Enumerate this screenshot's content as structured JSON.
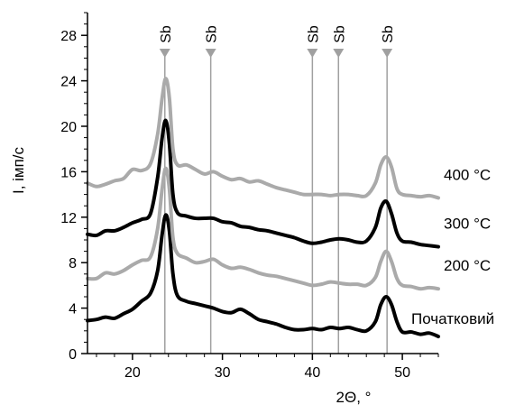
{
  "chart_data": {
    "type": "line",
    "title": "",
    "xlabel": "2Θ, °",
    "ylabel": "I, імп/с",
    "xlim": [
      15,
      54
    ],
    "ylim": [
      0,
      30
    ],
    "x_ticks": [
      20,
      30,
      40,
      50
    ],
    "y_ticks": [
      0,
      4,
      8,
      12,
      16,
      20,
      24,
      28
    ],
    "grid": false,
    "legend": "none",
    "reference_lines": {
      "label": "Sb",
      "color": "#a0a0a0",
      "x": [
        23.6,
        28.7,
        40.0,
        42.9,
        48.3
      ]
    },
    "series": [
      {
        "name": "Початковий",
        "color": "#000000",
        "x": [
          15,
          16,
          17,
          18,
          19,
          20,
          21,
          22,
          22.8,
          23.3,
          23.7,
          24.1,
          24.5,
          25,
          26,
          27,
          28,
          29,
          30,
          31,
          32,
          33,
          34,
          35,
          36,
          37,
          38,
          39,
          40,
          41,
          42,
          43,
          44,
          45,
          46,
          47,
          47.6,
          48.2,
          48.8,
          49.4,
          50,
          51,
          52,
          53,
          54
        ],
        "y": [
          2.9,
          3.0,
          3.2,
          3.1,
          3.5,
          3.9,
          4.6,
          5.3,
          7.3,
          10.5,
          12.2,
          10.8,
          7.0,
          5.1,
          4.6,
          4.4,
          4.2,
          4.0,
          3.7,
          3.6,
          3.9,
          3.5,
          3.0,
          2.8,
          2.6,
          2.3,
          2.1,
          2.1,
          2.2,
          2.1,
          2.3,
          2.2,
          2.3,
          2.1,
          2.0,
          2.8,
          4.3,
          5.0,
          4.3,
          2.8,
          1.9,
          1.9,
          1.7,
          1.8,
          1.5
        ]
      },
      {
        "name": "200 °C",
        "color": "#aaaaaa",
        "x": [
          15,
          16,
          17,
          18,
          19,
          20,
          21,
          22,
          22.8,
          23.3,
          23.7,
          24.1,
          24.5,
          25,
          26,
          27,
          28,
          29,
          30,
          31,
          32,
          33,
          34,
          35,
          36,
          37,
          38,
          39,
          40,
          41,
          42,
          43,
          44,
          45,
          46,
          47,
          47.6,
          48.2,
          48.8,
          49.4,
          50,
          51,
          52,
          53,
          54
        ],
        "y": [
          6.6,
          6.6,
          7.1,
          7.0,
          7.3,
          7.8,
          8.2,
          8.5,
          11.0,
          14.5,
          16.3,
          14.5,
          10.2,
          8.8,
          8.4,
          8.0,
          8.1,
          8.3,
          7.8,
          7.5,
          7.6,
          7.4,
          7.1,
          6.9,
          6.8,
          6.6,
          6.4,
          6.2,
          6.0,
          6.1,
          6.3,
          6.2,
          6.1,
          6.1,
          6.0,
          6.7,
          8.1,
          9.0,
          8.1,
          6.6,
          6.0,
          5.9,
          5.7,
          5.8,
          5.7
        ]
      },
      {
        "name": "300 °C",
        "color": "#000000",
        "x": [
          15,
          16,
          17,
          18,
          19,
          20,
          21,
          22,
          22.8,
          23.3,
          23.7,
          24.1,
          24.5,
          25,
          26,
          27,
          28,
          29,
          30,
          31,
          32,
          33,
          34,
          35,
          36,
          37,
          38,
          39,
          40,
          41,
          42,
          43,
          44,
          45,
          46,
          47,
          47.6,
          48.2,
          48.8,
          49.4,
          50,
          51,
          52,
          53,
          54
        ],
        "y": [
          10.5,
          10.4,
          10.8,
          10.8,
          11.1,
          11.5,
          11.8,
          12.3,
          15.5,
          19.0,
          20.5,
          18.5,
          14.0,
          12.4,
          12.1,
          11.9,
          11.9,
          11.9,
          11.6,
          11.5,
          11.2,
          11.1,
          10.9,
          10.8,
          10.6,
          10.4,
          10.2,
          9.9,
          9.7,
          9.8,
          10.0,
          10.1,
          10.0,
          9.8,
          9.9,
          11.1,
          12.8,
          13.4,
          12.3,
          10.6,
          9.9,
          9.8,
          9.6,
          9.5,
          9.4
        ]
      },
      {
        "name": "400 °C",
        "color": "#aaaaaa",
        "x": [
          15,
          16,
          17,
          18,
          19,
          20,
          21,
          22,
          22.8,
          23.3,
          23.7,
          24.1,
          24.5,
          25,
          26,
          27,
          28,
          29,
          30,
          31,
          32,
          33,
          34,
          35,
          36,
          37,
          38,
          39,
          40,
          41,
          42,
          43,
          44,
          45,
          46,
          47,
          47.6,
          48.2,
          48.8,
          49.4,
          50,
          51,
          52,
          53,
          54
        ],
        "y": [
          15.0,
          14.7,
          14.9,
          15.2,
          15.4,
          16.2,
          16.1,
          16.7,
          19.3,
          22.5,
          24.2,
          22.5,
          18.0,
          16.6,
          16.6,
          16.2,
          15.8,
          16.0,
          15.6,
          15.3,
          15.4,
          15.1,
          15.2,
          14.9,
          14.6,
          14.4,
          14.2,
          14.0,
          14.0,
          14.0,
          13.9,
          14.0,
          14.0,
          13.9,
          13.9,
          15.0,
          16.6,
          17.3,
          16.4,
          14.5,
          14.0,
          13.9,
          13.8,
          13.9,
          13.7
        ]
      }
    ]
  }
}
